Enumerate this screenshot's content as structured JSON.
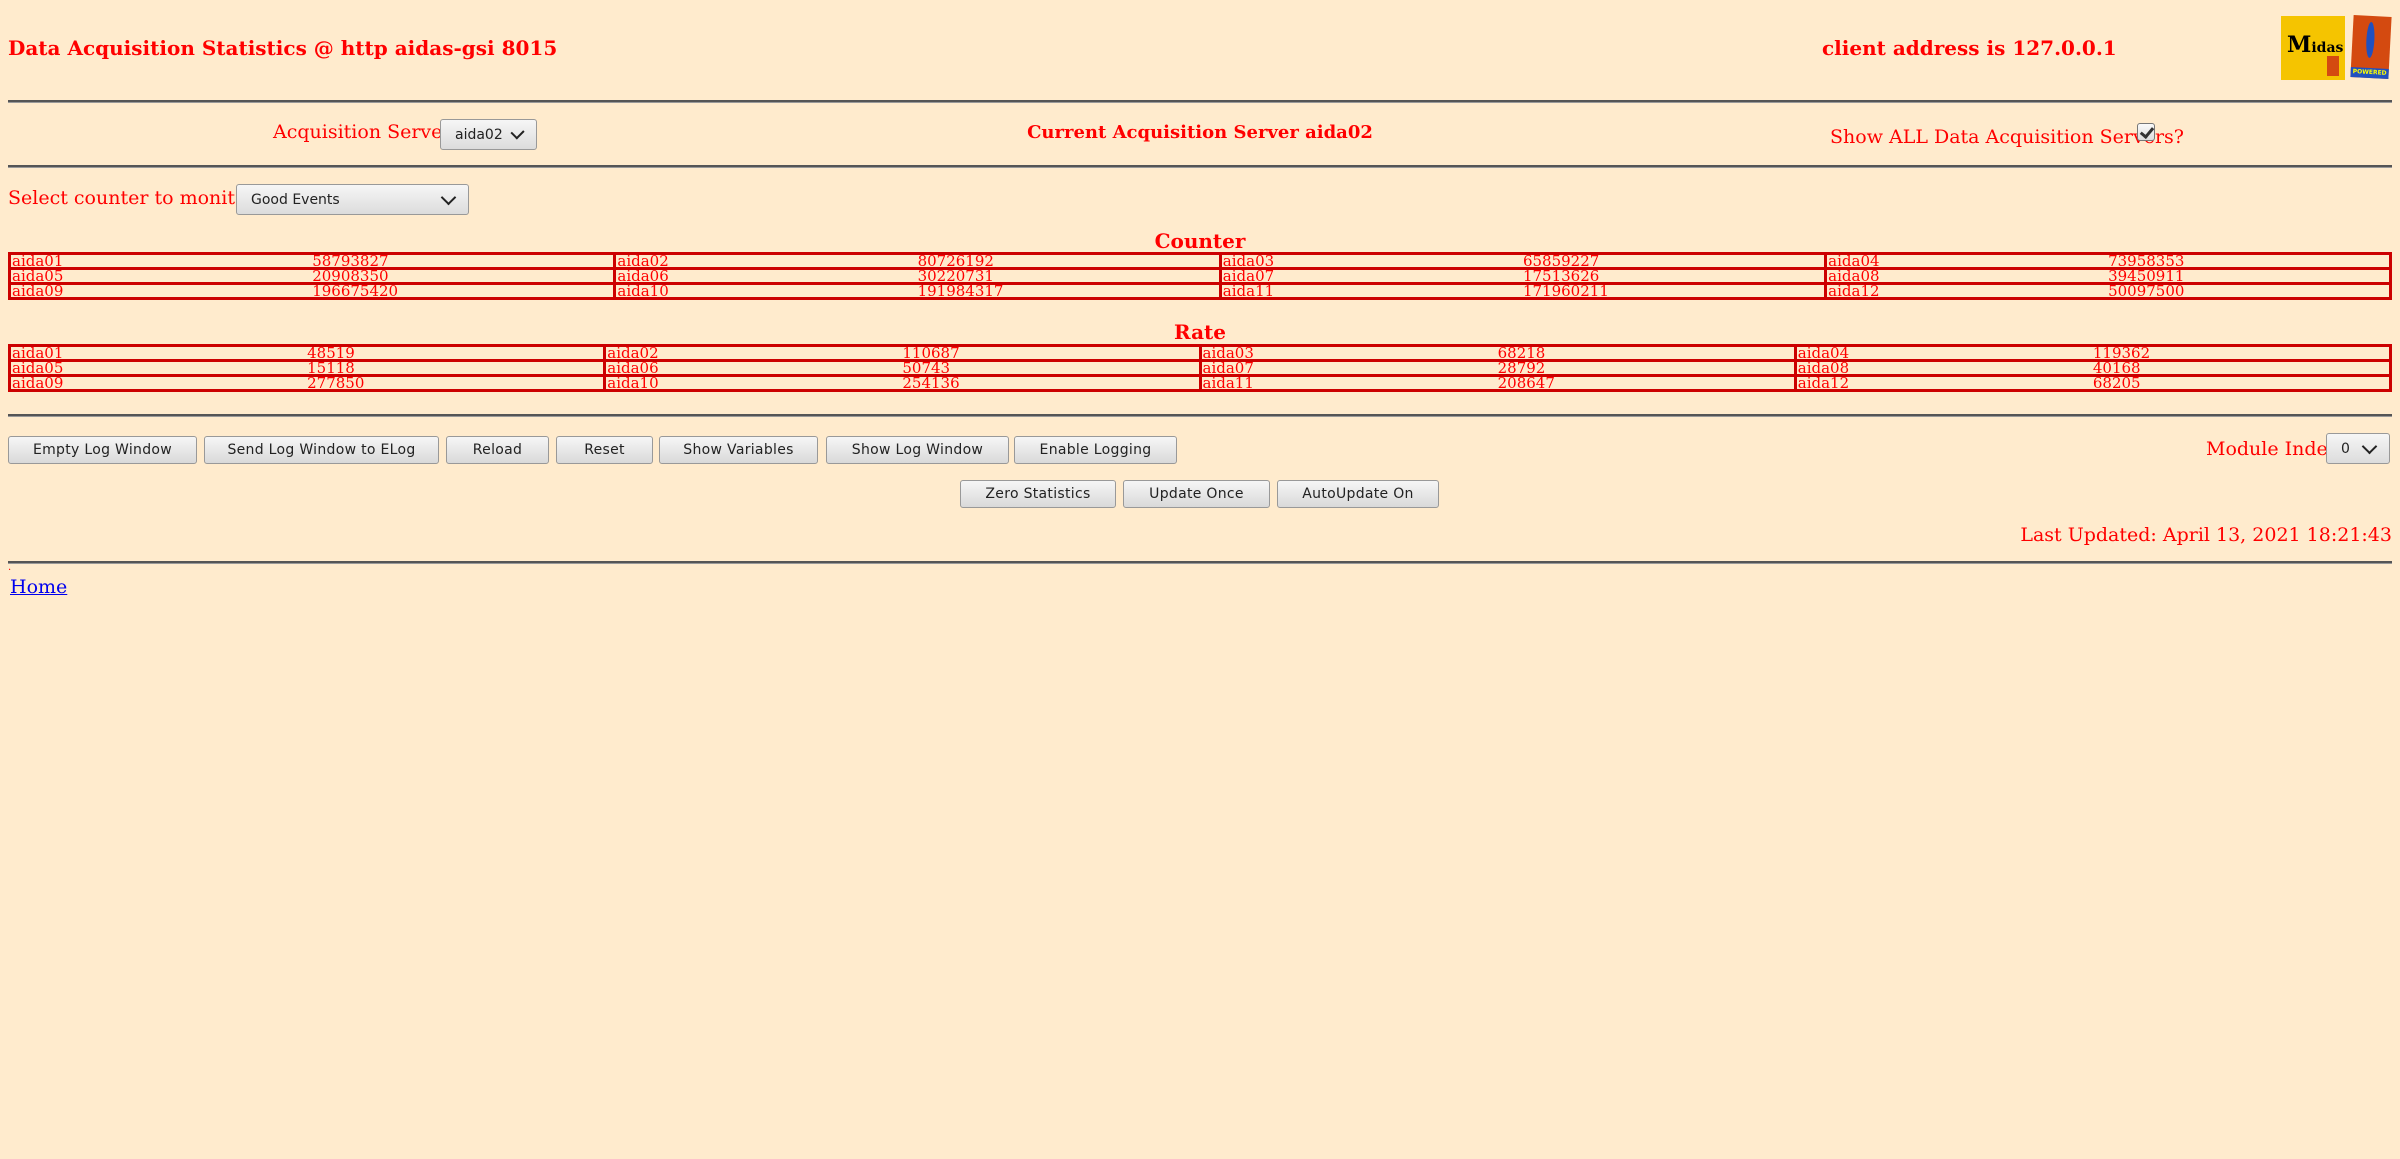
{
  "header": {
    "title": "Data Acquisition Statistics @ http aidas-gsi 8015",
    "client_address": "client address is 127.0.0.1",
    "logos": [
      "Midas",
      "TCL POWERED"
    ]
  },
  "servers": {
    "label": "Acquisition Servers",
    "selected": "aida02",
    "current": "Current Acquisition Server aida02",
    "show_all_label": "Show ALL Data Acquisition Servers?",
    "show_all_checked": true
  },
  "counter_select": {
    "label": "Select counter to monitor",
    "selected": "Good Events"
  },
  "counter": {
    "title": "Counter",
    "rows": [
      [
        [
          "aida01",
          "58793827"
        ],
        [
          "aida02",
          "80726192"
        ],
        [
          "aida03",
          "65859227"
        ],
        [
          "aida04",
          "73958353"
        ]
      ],
      [
        [
          "aida05",
          "20908350"
        ],
        [
          "aida06",
          "30220731"
        ],
        [
          "aida07",
          "17513626"
        ],
        [
          "aida08",
          "39450911"
        ]
      ],
      [
        [
          "aida09",
          "196675420"
        ],
        [
          "aida10",
          "191984317"
        ],
        [
          "aida11",
          "171960211"
        ],
        [
          "aida12",
          "50097500"
        ]
      ]
    ]
  },
  "rate": {
    "title": "Rate",
    "rows": [
      [
        [
          "aida01",
          "48519"
        ],
        [
          "aida02",
          "110687"
        ],
        [
          "aida03",
          "68218"
        ],
        [
          "aida04",
          "119362"
        ]
      ],
      [
        [
          "aida05",
          "15118"
        ],
        [
          "aida06",
          "50743"
        ],
        [
          "aida07",
          "28792"
        ],
        [
          "aida08",
          "40168"
        ]
      ],
      [
        [
          "aida09",
          "277850"
        ],
        [
          "aida10",
          "254136"
        ],
        [
          "aida11",
          "208647"
        ],
        [
          "aida12",
          "68205"
        ]
      ]
    ]
  },
  "buttons": {
    "empty_log": "Empty Log Window",
    "send_log": "Send Log Window to ELog",
    "reload": "Reload",
    "reset": "Reset",
    "show_variables": "Show Variables",
    "show_log": "Show Log Window",
    "enable_logging": "Enable Logging",
    "zero_stats": "Zero Statistics",
    "update_once": "Update Once",
    "autoupdate": "AutoUpdate On"
  },
  "module_index": {
    "label": "Module Index",
    "selected": "0"
  },
  "last_updated": "Last Updated: April 13, 2021 18:21:43",
  "footer": {
    "dot": ".",
    "home": "Home"
  },
  "colors": {
    "background": "#ffebcd",
    "text": "#ff0000",
    "table_border": "#cc0000"
  }
}
